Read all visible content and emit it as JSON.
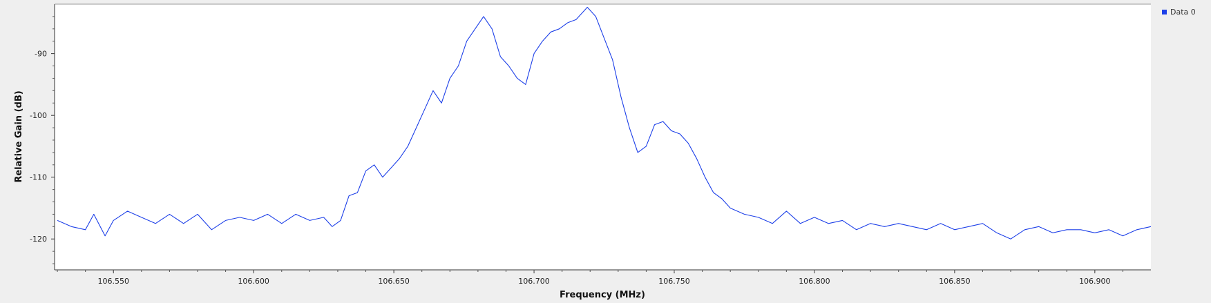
{
  "chart_data": {
    "type": "line",
    "xlabel": "Frequency (MHz)",
    "ylabel": "Relative Gain (dB)",
    "xlim": [
      106.529,
      106.92
    ],
    "ylim": [
      -125,
      -82
    ],
    "x_ticks": [
      106.55,
      106.6,
      106.65,
      106.7,
      106.75,
      106.8,
      106.85,
      106.9
    ],
    "x_tick_labels": [
      "106.550",
      "106.600",
      "106.650",
      "106.700",
      "106.750",
      "106.800",
      "106.850",
      "106.900"
    ],
    "y_ticks": [
      -90,
      -100,
      -110,
      -120
    ],
    "y_tick_labels": [
      "-90",
      "-100",
      "-110",
      "-120"
    ],
    "grid": false,
    "legend_position": "top-right",
    "colors": {
      "series": "#1c3fe8",
      "background": "#efefef",
      "plot_area": "#ffffff"
    },
    "series": [
      {
        "name": "Data 0",
        "x": [
          106.53,
          106.535,
          106.54,
          106.543,
          106.547,
          106.55,
          106.555,
          106.56,
          106.565,
          106.57,
          106.575,
          106.58,
          106.585,
          106.59,
          106.595,
          106.6,
          106.605,
          106.61,
          106.615,
          106.62,
          106.625,
          106.628,
          106.631,
          106.634,
          106.637,
          106.64,
          106.643,
          106.646,
          106.649,
          106.652,
          106.655,
          106.658,
          106.661,
          106.664,
          106.667,
          106.67,
          106.673,
          106.676,
          106.679,
          106.682,
          106.685,
          106.688,
          106.691,
          106.694,
          106.697,
          106.7,
          106.703,
          106.706,
          106.709,
          106.712,
          106.715,
          106.719,
          106.722,
          106.725,
          106.728,
          106.731,
          106.734,
          106.737,
          106.74,
          106.743,
          106.746,
          106.749,
          106.752,
          106.755,
          106.758,
          106.761,
          106.764,
          106.767,
          106.77,
          106.775,
          106.78,
          106.785,
          106.79,
          106.795,
          106.8,
          106.805,
          106.81,
          106.815,
          106.82,
          106.825,
          106.83,
          106.835,
          106.84,
          106.845,
          106.85,
          106.855,
          106.86,
          106.865,
          106.87,
          106.875,
          106.88,
          106.885,
          106.89,
          106.895,
          106.9,
          106.905,
          106.91,
          106.915,
          106.92
        ],
        "y": [
          -117,
          -118,
          -118.5,
          -116,
          -119.5,
          -117,
          -115.5,
          -116.5,
          -117.5,
          -116,
          -117.5,
          -116,
          -118.5,
          -117,
          -116.5,
          -117,
          -116,
          -117.5,
          -116,
          -117,
          -116.5,
          -118,
          -117,
          -113,
          -112.5,
          -109,
          -108,
          -110,
          -108.5,
          -107,
          -105,
          -102,
          -99,
          -96,
          -98,
          -94,
          -92,
          -88,
          -86,
          -84,
          -86,
          -90.5,
          -92,
          -94,
          -95,
          -90,
          -88,
          -86.5,
          -86,
          -85,
          -84.5,
          -82.5,
          -84,
          -87.5,
          -91,
          -97,
          -102,
          -106,
          -105,
          -101.5,
          -101,
          -102.5,
          -103,
          -104.5,
          -107,
          -110,
          -112.5,
          -113.5,
          -115,
          -116,
          -116.5,
          -117.5,
          -115.5,
          -117.5,
          -116.5,
          -117.5,
          -117,
          -118.5,
          -117.5,
          -118,
          -117.5,
          -118,
          -118.5,
          -117.5,
          -118.5,
          -118,
          -117.5,
          -119,
          -120,
          -118.5,
          -118,
          -119,
          -118.5,
          -118.5,
          -119,
          -118.5,
          -119.5,
          -118.5,
          -118
        ]
      }
    ]
  }
}
